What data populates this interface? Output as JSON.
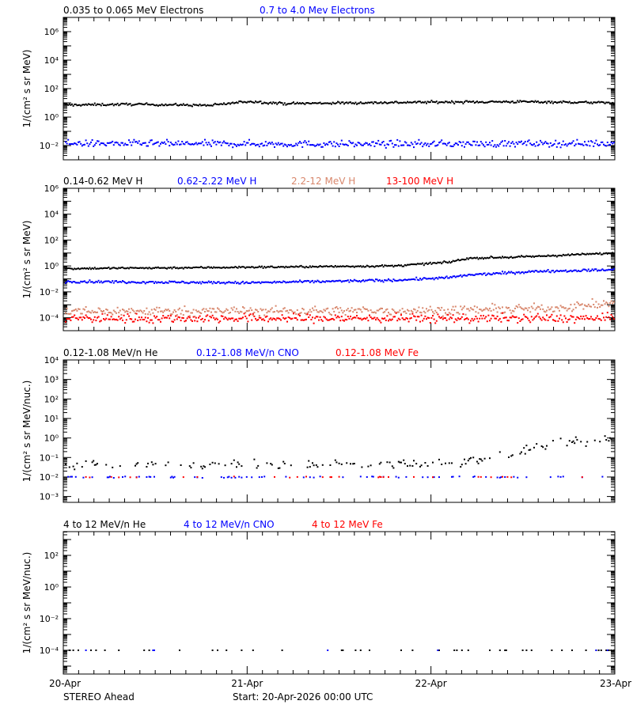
{
  "colors": {
    "black": "#000000",
    "blue": "#0000ff",
    "salmon": "#d8876c",
    "red": "#ff0000"
  },
  "footer": {
    "left": "STEREO Ahead",
    "center": "Start: 20-Apr-2026 00:00 UTC"
  },
  "x_axis": {
    "range_days": [
      0,
      3
    ],
    "tick_labels": [
      "20-Apr",
      "21-Apr",
      "22-Apr",
      "23-Apr"
    ]
  },
  "chart_data": [
    {
      "type": "scatter",
      "log_y": true,
      "ylabel": "1/(cm² s sr MeV)",
      "ylim_exp": [
        -3,
        7
      ],
      "ytick_exps": [
        -2,
        0,
        2,
        4,
        6
      ],
      "ytick_labels": [
        "10⁻²",
        "10⁰",
        "10²",
        "10⁴",
        "10⁶"
      ],
      "legend": [
        {
          "label": "0.035 to 0.065 MeV Electrons",
          "color": "black"
        },
        {
          "label": "0.7 to 4.0 Mev Electrons",
          "color": "blue"
        }
      ],
      "series": [
        {
          "name": "0.035 to 0.065 MeV Electrons",
          "color": "black",
          "profile_x": [
            0,
            0.4,
            0.8,
            1.0,
            1.2,
            1.6,
            2.0,
            2.5,
            3.0
          ],
          "profile_log": [
            0.85,
            0.9,
            0.82,
            1.1,
            0.95,
            1.0,
            1.05,
            1.08,
            1.0
          ],
          "scatter": 0.08,
          "fill": 1.0
        },
        {
          "name": "0.7 to 4.0 Mev Electrons",
          "color": "blue",
          "profile_x": [
            0,
            1.5,
            3.0
          ],
          "profile_log": [
            -1.85,
            -1.9,
            -1.85
          ],
          "scatter": 0.22,
          "fill": 1.0
        }
      ]
    },
    {
      "type": "scatter",
      "log_y": true,
      "ylabel": "1/(cm² s sr MeV)",
      "ylim_exp": [
        -5,
        6
      ],
      "ytick_exps": [
        -4,
        -2,
        0,
        2,
        4,
        6
      ],
      "ytick_labels": [
        "10⁻⁴",
        "10⁻²",
        "10⁰",
        "10²",
        "10⁴",
        "10⁶"
      ],
      "legend": [
        {
          "label": "0.14-0.62 MeV H",
          "color": "black"
        },
        {
          "label": "0.62-2.22 MeV H",
          "color": "blue"
        },
        {
          "label": "2.2-12 MeV H",
          "color": "salmon"
        },
        {
          "label": "13-100 MeV H",
          "color": "red"
        }
      ],
      "series": [
        {
          "name": "0.14-0.62 MeV H",
          "color": "black",
          "profile_x": [
            0,
            1.0,
            1.8,
            2.1,
            2.2,
            2.5,
            3.0
          ],
          "profile_log": [
            -0.2,
            -0.1,
            0.0,
            0.3,
            0.6,
            0.7,
            1.0
          ],
          "scatter": 0.07,
          "fill": 1.0
        },
        {
          "name": "0.62-2.22 MeV H",
          "color": "blue",
          "profile_x": [
            0,
            1.0,
            1.8,
            2.1,
            2.2,
            2.6,
            3.0
          ],
          "profile_log": [
            -1.2,
            -1.3,
            -1.1,
            -0.9,
            -0.7,
            -0.4,
            -0.3
          ],
          "scatter": 0.09,
          "fill": 1.0
        },
        {
          "name": "2.2-12 MeV H",
          "color": "salmon",
          "profile_x": [
            0,
            2.0,
            2.6,
            3.0
          ],
          "profile_log": [
            -3.5,
            -3.45,
            -3.3,
            -2.9
          ],
          "scatter": 0.32,
          "fill": 1.0
        },
        {
          "name": "13-100 MeV H",
          "color": "red",
          "profile_x": [
            0,
            3.0
          ],
          "profile_log": [
            -4.05,
            -4.05
          ],
          "scatter": 0.32,
          "fill": 1.0
        }
      ]
    },
    {
      "type": "scatter",
      "log_y": true,
      "ylabel": "1/(cm² s sr MeV/nuc.)",
      "ylim_exp": [
        -3.3,
        4
      ],
      "ytick_exps": [
        -3,
        -2,
        -1,
        0,
        1,
        2,
        3,
        4
      ],
      "ytick_labels": [
        "10⁻³",
        "10⁻²",
        "10⁻¹",
        "10⁰",
        "10¹",
        "10²",
        "10³",
        "10⁴"
      ],
      "legend": [
        {
          "label": "0.12-1.08 MeV/n He",
          "color": "black"
        },
        {
          "label": "0.12-1.08 MeV/n CNO",
          "color": "blue"
        },
        {
          "label": "0.12-1.08 MeV Fe",
          "color": "red"
        }
      ],
      "series": [
        {
          "name": "0.12-1.08 MeV/n He",
          "color": "black",
          "profile_x": [
            0,
            1.8,
            2.1,
            2.4,
            2.6,
            3.0
          ],
          "profile_log": [
            -1.35,
            -1.35,
            -1.3,
            -0.9,
            -0.4,
            -0.1
          ],
          "scatter": 0.22,
          "fill": 0.35
        },
        {
          "name": "0.12-1.08 MeV/n CNO",
          "color": "blue",
          "profile_x": [
            0,
            3.0
          ],
          "profile_log": [
            -2.0,
            -2.0
          ],
          "scatter": 0.04,
          "fill": 0.18
        },
        {
          "name": "0.12-1.08 MeV Fe",
          "color": "red",
          "profile_x": [
            0,
            3.0
          ],
          "profile_log": [
            -2.0,
            -2.0
          ],
          "scatter": 0.03,
          "fill": 0.08
        }
      ]
    },
    {
      "type": "scatter",
      "log_y": true,
      "ylabel": "1/(cm² s sr MeV/nuc.)",
      "ylim_exp": [
        -5.5,
        3.5
      ],
      "ytick_exps": [
        -4,
        -2,
        0,
        2
      ],
      "ytick_labels": [
        "10⁻⁴",
        "10⁻²",
        "10⁰",
        "10²"
      ],
      "legend": [
        {
          "label": "4 to 12 MeV/n He",
          "color": "black"
        },
        {
          "label": "4 to 12 MeV/n CNO",
          "color": "blue"
        },
        {
          "label": "4 to 12 MeV Fe",
          "color": "red"
        }
      ],
      "series": [
        {
          "name": "4 to 12 MeV/n He",
          "color": "black",
          "profile_x": [
            0,
            3.0
          ],
          "profile_log": [
            -4.0,
            -4.0
          ],
          "scatter": 0.0,
          "fill": 0.12
        },
        {
          "name": "4 to 12 MeV/n CNO",
          "color": "blue",
          "profile_x": [
            0,
            3.0
          ],
          "profile_log": [
            -4.0,
            -4.0
          ],
          "scatter": 0.0,
          "fill": 0.02
        }
      ]
    }
  ]
}
